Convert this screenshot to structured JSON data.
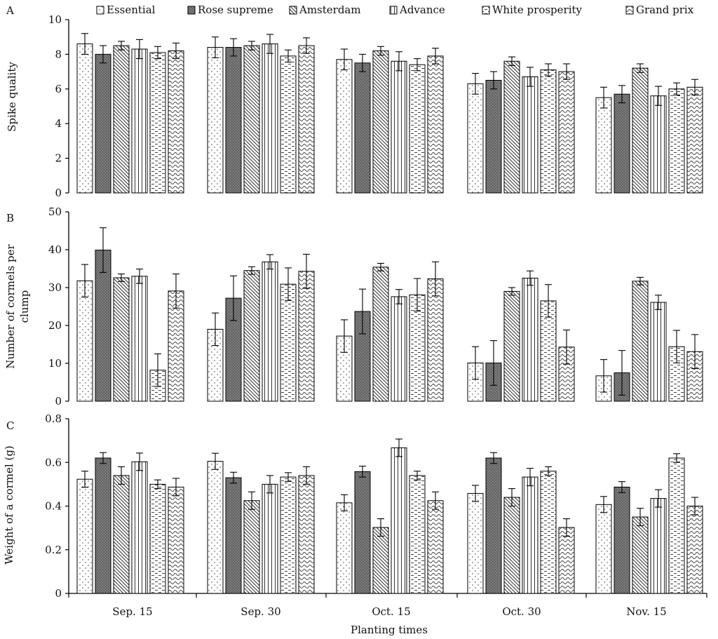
{
  "figure": {
    "xlabel": "Planting times"
  },
  "chart_data": [
    {
      "type": "bar",
      "panel_label": "A",
      "ylabel": "Spike quality",
      "ylim": [
        0,
        10
      ],
      "yticks": [
        "0",
        "2",
        "4",
        "6",
        "8",
        "10"
      ],
      "categories": [
        "Sep. 15",
        "Sep. 30",
        "Oct. 15",
        "Oct. 30",
        "Nov. 15"
      ],
      "legend": "top",
      "series": [
        {
          "name": "Essential",
          "pattern": "dots",
          "values": [
            8.6,
            8.4,
            7.7,
            6.3,
            5.5
          ],
          "errors": [
            0.6,
            0.6,
            0.6,
            0.6,
            0.6
          ]
        },
        {
          "name": "Rose supreme",
          "pattern": "dark",
          "values": [
            8.0,
            8.4,
            7.5,
            6.5,
            5.7
          ],
          "errors": [
            0.5,
            0.5,
            0.5,
            0.5,
            0.5
          ]
        },
        {
          "name": "Amsterdam",
          "pattern": "diag",
          "values": [
            8.5,
            8.5,
            8.2,
            7.6,
            7.2
          ],
          "errors": [
            0.25,
            0.25,
            0.25,
            0.25,
            0.25
          ]
        },
        {
          "name": "Advance",
          "pattern": "vert",
          "values": [
            8.3,
            8.6,
            7.6,
            6.7,
            5.6
          ],
          "errors": [
            0.55,
            0.55,
            0.55,
            0.55,
            0.55
          ]
        },
        {
          "name": "White prosperity",
          "pattern": "dashes",
          "values": [
            8.1,
            7.9,
            7.4,
            7.1,
            6.0
          ],
          "errors": [
            0.35,
            0.35,
            0.35,
            0.35,
            0.35
          ]
        },
        {
          "name": "Grand prix",
          "pattern": "waves",
          "values": [
            8.2,
            8.5,
            7.9,
            7.0,
            6.1
          ],
          "errors": [
            0.45,
            0.45,
            0.45,
            0.45,
            0.45
          ]
        }
      ]
    },
    {
      "type": "bar",
      "panel_label": "B",
      "ylabel": "Number of cormels per clump",
      "ylim": [
        0,
        50
      ],
      "yticks": [
        "0",
        "10",
        "20",
        "30",
        "40",
        "50"
      ],
      "categories": [
        "Sep. 15",
        "Sep. 30",
        "Oct. 15",
        "Oct. 30",
        "Nov. 15"
      ],
      "series": [
        {
          "name": "Essential",
          "pattern": "dots",
          "values": [
            31.8,
            19.0,
            17.2,
            10.1,
            6.7
          ],
          "errors": [
            4.3,
            4.3,
            4.3,
            4.3,
            4.3
          ]
        },
        {
          "name": "Rose supreme",
          "pattern": "dark",
          "values": [
            39.9,
            27.2,
            23.7,
            10.1,
            7.5
          ],
          "errors": [
            5.9,
            5.9,
            5.9,
            5.9,
            5.9
          ]
        },
        {
          "name": "Amsterdam",
          "pattern": "diag",
          "values": [
            32.6,
            34.5,
            35.4,
            29.0,
            31.7
          ],
          "errors": [
            1.0,
            1.0,
            1.0,
            1.0,
            1.0
          ]
        },
        {
          "name": "Advance",
          "pattern": "vert",
          "values": [
            33.0,
            36.8,
            27.6,
            32.5,
            26.1
          ],
          "errors": [
            1.9,
            1.9,
            1.9,
            1.9,
            1.9
          ]
        },
        {
          "name": "White prosperity",
          "pattern": "dashes",
          "values": [
            8.2,
            30.9,
            28.1,
            26.5,
            14.4
          ],
          "errors": [
            4.3,
            4.3,
            4.3,
            4.3,
            4.3
          ]
        },
        {
          "name": "Grand prix",
          "pattern": "waves",
          "values": [
            29.1,
            34.3,
            32.3,
            14.3,
            13.1
          ],
          "errors": [
            4.5,
            4.5,
            4.5,
            4.5,
            4.5
          ]
        }
      ]
    },
    {
      "type": "bar",
      "panel_label": "C",
      "ylabel": "Weight of a cormel (g)",
      "ylim": [
        0,
        0.8
      ],
      "yticks": [
        "0",
        "0.2",
        "0.4",
        "0.6",
        "0.8"
      ],
      "categories": [
        "Sep. 15",
        "Sep. 30",
        "Oct. 15",
        "Oct. 30",
        "Nov. 15"
      ],
      "series": [
        {
          "name": "Essential",
          "pattern": "dots",
          "values": [
            0.523,
            0.605,
            0.415,
            0.458,
            0.407
          ],
          "errors": [
            0.037,
            0.037,
            0.037,
            0.037,
            0.037
          ]
        },
        {
          "name": "Rose supreme",
          "pattern": "dark",
          "values": [
            0.62,
            0.53,
            0.558,
            0.62,
            0.487
          ],
          "errors": [
            0.025,
            0.025,
            0.025,
            0.025,
            0.025
          ]
        },
        {
          "name": "Amsterdam",
          "pattern": "diag",
          "values": [
            0.54,
            0.425,
            0.302,
            0.44,
            0.35
          ],
          "errors": [
            0.04,
            0.04,
            0.04,
            0.04,
            0.04
          ]
        },
        {
          "name": "Advance",
          "pattern": "vert",
          "values": [
            0.603,
            0.5,
            0.667,
            0.533,
            0.435
          ],
          "errors": [
            0.04,
            0.04,
            0.04,
            0.04,
            0.04
          ]
        },
        {
          "name": "White prosperity",
          "pattern": "dashes",
          "values": [
            0.5,
            0.533,
            0.54,
            0.56,
            0.62
          ],
          "errors": [
            0.02,
            0.02,
            0.02,
            0.02,
            0.02
          ]
        },
        {
          "name": "Grand prix",
          "pattern": "waves",
          "values": [
            0.487,
            0.54,
            0.425,
            0.302,
            0.4
          ],
          "errors": [
            0.04,
            0.04,
            0.04,
            0.04,
            0.04
          ]
        }
      ]
    }
  ]
}
